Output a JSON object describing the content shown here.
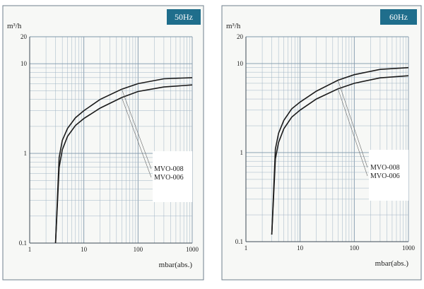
{
  "chart_data": [
    {
      "type": "line",
      "badge": "50Hz",
      "ylabel": "m³/h",
      "xlabel": "mbar(abs.)",
      "x_scale": "log",
      "y_scale": "log",
      "xlim": [
        1,
        1000
      ],
      "ylim": [
        0.1,
        20
      ],
      "x_ticks": [
        "1",
        "10",
        "100",
        "1000"
      ],
      "y_ticks": [
        "0.1",
        "1",
        "10",
        "20"
      ],
      "grid": true,
      "legend_position": "lower-right",
      "colors": {
        "curve": "#1b1b1b",
        "badge": "#1f6e8c"
      },
      "series": [
        {
          "name": "MVO-008",
          "x": [
            3,
            3.5,
            4,
            5,
            7,
            10,
            20,
            50,
            100,
            300,
            1000
          ],
          "y": [
            0.1,
            0.9,
            1.4,
            1.9,
            2.5,
            3.0,
            4.0,
            5.2,
            6.0,
            6.8,
            7.0
          ]
        },
        {
          "name": "MVO-006",
          "x": [
            3,
            3.5,
            4,
            5,
            7,
            10,
            20,
            50,
            100,
            300,
            1000
          ],
          "y": [
            0.1,
            0.7,
            1.1,
            1.55,
            2.05,
            2.45,
            3.2,
            4.2,
            4.9,
            5.5,
            5.8
          ]
        }
      ]
    },
    {
      "type": "line",
      "badge": "60Hz",
      "ylabel": "m³/h",
      "xlabel": "mbar(abs.)",
      "x_scale": "log",
      "y_scale": "log",
      "xlim": [
        1,
        1000
      ],
      "ylim": [
        0.1,
        20
      ],
      "x_ticks": [
        "1",
        "10",
        "100",
        "1000"
      ],
      "y_ticks": [
        "0.1",
        "1",
        "10",
        "20"
      ],
      "grid": true,
      "legend_position": "lower-right",
      "colors": {
        "curve": "#1b1b1b",
        "badge": "#1f6e8c"
      },
      "series": [
        {
          "name": "MVO-008",
          "x": [
            3,
            3.5,
            4,
            5,
            7,
            10,
            20,
            50,
            100,
            300,
            1000
          ],
          "y": [
            0.12,
            1.1,
            1.65,
            2.3,
            3.1,
            3.7,
            4.9,
            6.5,
            7.5,
            8.6,
            9.0
          ]
        },
        {
          "name": "MVO-006",
          "x": [
            3,
            3.5,
            4,
            5,
            7,
            10,
            20,
            50,
            100,
            300,
            1000
          ],
          "y": [
            0.12,
            0.85,
            1.3,
            1.85,
            2.5,
            3.0,
            4.0,
            5.2,
            6.0,
            6.9,
            7.3
          ]
        }
      ]
    }
  ]
}
